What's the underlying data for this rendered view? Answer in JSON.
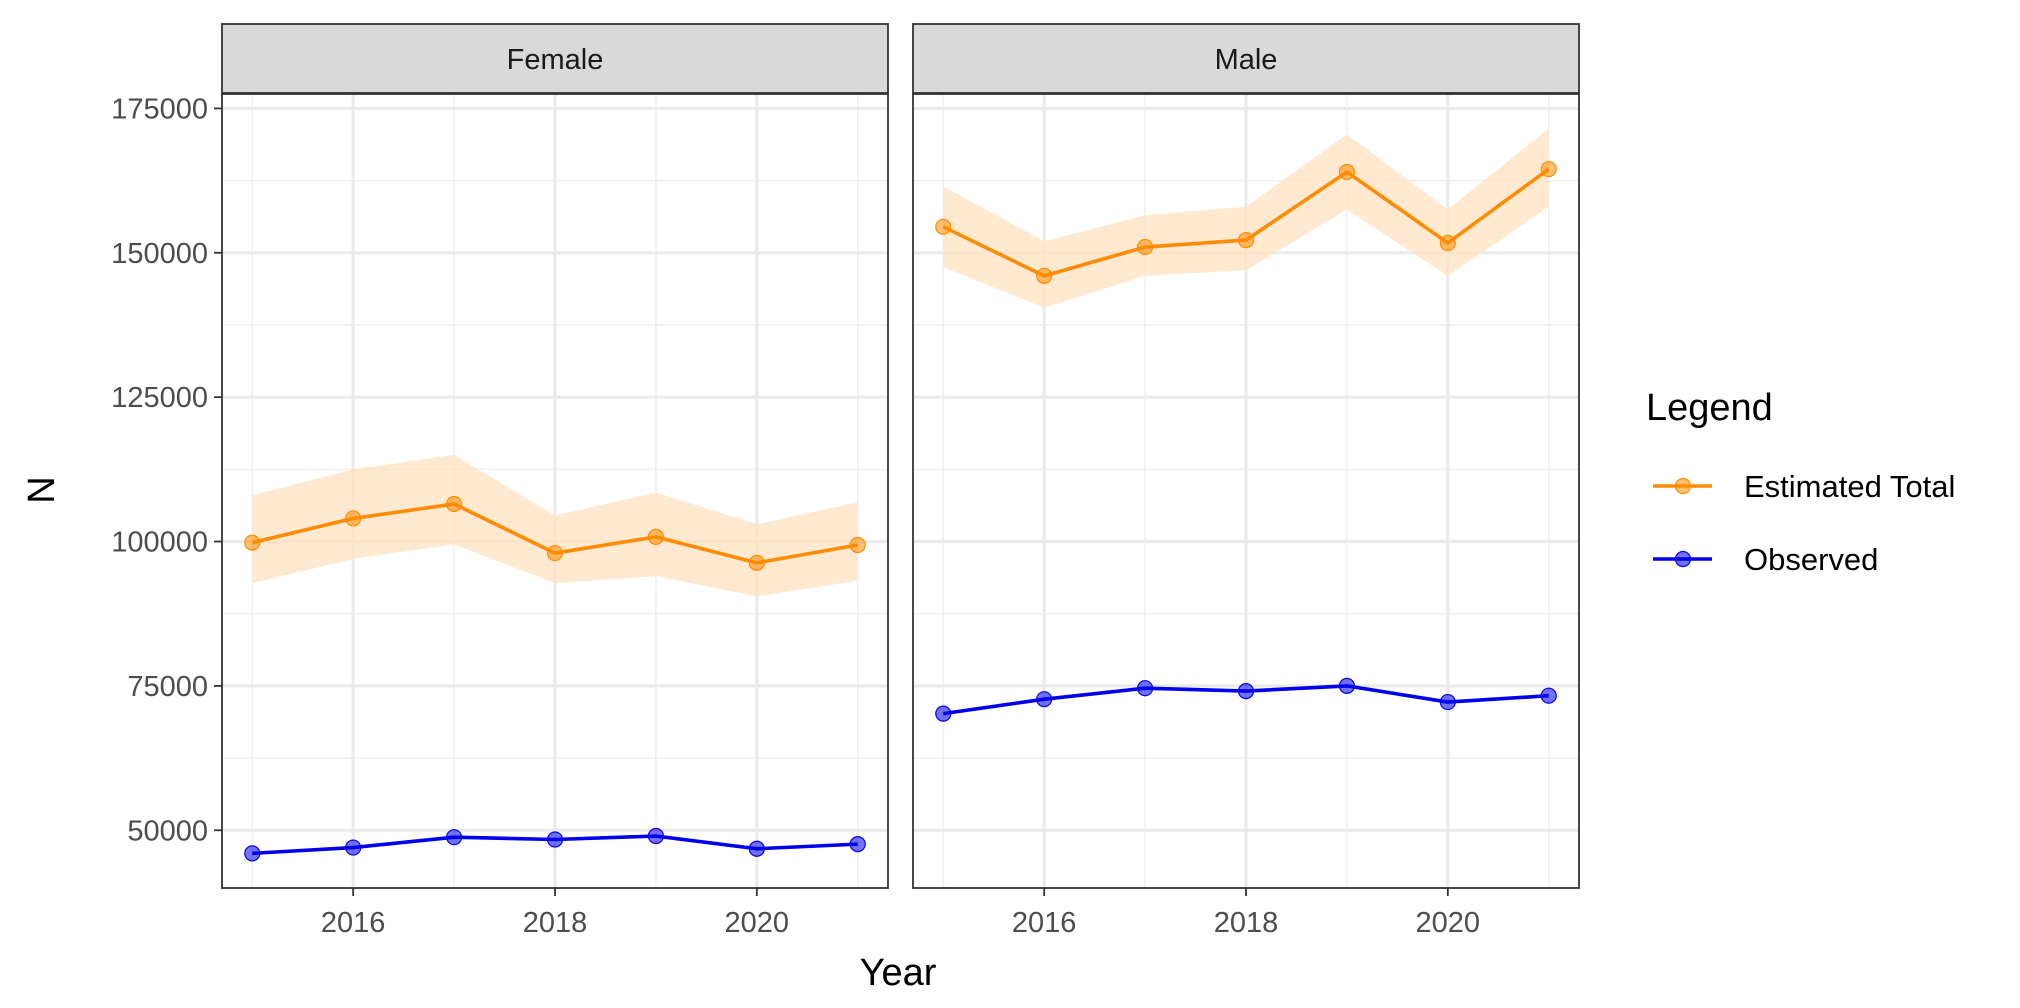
{
  "chart_data": {
    "type": "line",
    "facets": [
      "Female",
      "Male"
    ],
    "x": [
      2015,
      2016,
      2017,
      2018,
      2019,
      2020,
      2021
    ],
    "x_ticks": [
      2016,
      2018,
      2020
    ],
    "xlim": [
      2014.7,
      2021.3
    ],
    "y_ticks": [
      50000,
      75000,
      100000,
      125000,
      150000,
      175000
    ],
    "ylim": [
      40000,
      177500
    ],
    "xlabel": "Year",
    "ylabel": "N",
    "grid": true,
    "legend": {
      "title": "Legend",
      "position": "right",
      "entries": [
        {
          "label": "Estimated Total",
          "color": "#ff8c00"
        },
        {
          "label": "Observed",
          "color": "#0000ee"
        }
      ]
    },
    "series": [
      {
        "name": "Estimated Total",
        "color": "#ff8c00",
        "ribbon_color": "#ffe2c0",
        "panels": {
          "Female": {
            "values": [
              99800,
              104000,
              106500,
              98000,
              100800,
              96300,
              99400
            ],
            "lower": [
              92800,
              97000,
              99500,
              92800,
              94000,
              90500,
              93200
            ],
            "upper": [
              108000,
              112500,
              115000,
              104500,
              108500,
              103000,
              106800
            ]
          },
          "Male": {
            "values": [
              154500,
              146000,
              151000,
              152200,
              164000,
              151700,
              164500
            ],
            "lower": [
              147500,
              140500,
              146000,
              147000,
              157500,
              146000,
              158000
            ],
            "upper": [
              161500,
              152000,
              156500,
              158000,
              170500,
              157500,
              171500
            ]
          }
        }
      },
      {
        "name": "Observed",
        "color": "#0000ee",
        "panels": {
          "Female": {
            "values": [
              46000,
              47000,
              48800,
              48400,
              49000,
              46800,
              47600
            ]
          },
          "Male": {
            "values": [
              70200,
              72700,
              74600,
              74100,
              75000,
              72200,
              73300
            ]
          }
        }
      }
    ]
  }
}
